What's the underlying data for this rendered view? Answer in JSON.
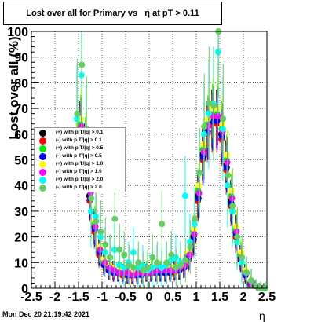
{
  "title": "Lost over all for Primary vs   η at pT > 0.11",
  "footer": "Mon Dec 20 21:19:42 2021",
  "chart_data": {
    "type": "scatter",
    "title": "Lost over all for Primary vs   η at pT > 0.11",
    "xlabel": "η",
    "ylabel": "Lost over all (%)",
    "xlim": [
      -2.5,
      2.5
    ],
    "ylim": [
      0,
      100
    ],
    "x_ticks": [
      "-2.5",
      "-2",
      "-1.5",
      "-1",
      "-0.5",
      "0",
      "0.5",
      "1",
      "1.5",
      "2",
      "2.5"
    ],
    "y_ticks": [
      "0",
      "10",
      "20",
      "30",
      "40",
      "50",
      "60",
      "70",
      "80",
      "90",
      "100"
    ],
    "grid": true,
    "legend_position": "left-middle",
    "x": [
      -1.55,
      -1.45,
      -1.35,
      -1.25,
      -1.15,
      -1.05,
      -0.95,
      -0.85,
      -0.75,
      -0.65,
      -0.55,
      -0.45,
      -0.35,
      -0.25,
      -0.15,
      -0.05,
      0.05,
      0.15,
      0.25,
      0.35,
      0.45,
      0.55,
      0.65,
      0.75,
      0.85,
      0.95,
      1.05,
      1.15,
      1.25,
      1.35,
      1.45,
      1.55,
      1.65,
      1.75,
      1.85,
      1.95,
      2.05,
      2.15,
      2.25,
      2.35,
      2.45
    ],
    "series": [
      {
        "name": "(+) with p T/|q| > 0.1",
        "color": "#000000",
        "values": [
          50,
          62,
          54,
          36,
          24,
          14,
          10,
          8,
          7,
          6,
          6,
          5,
          5,
          6,
          6,
          6,
          6,
          6,
          6,
          6,
          7,
          7,
          7,
          8,
          12,
          20,
          36,
          52,
          62,
          66,
          66,
          60,
          48,
          34,
          22,
          12,
          6,
          2,
          1,
          0,
          0
        ]
      },
      {
        "name": "(-) with p T/|q| > 0.1",
        "color": "#ff0000",
        "values": [
          48,
          60,
          52,
          34,
          22,
          13,
          9,
          7,
          6,
          6,
          5,
          5,
          5,
          5,
          6,
          6,
          6,
          6,
          6,
          6,
          6,
          6,
          7,
          8,
          11,
          18,
          34,
          50,
          60,
          64,
          64,
          58,
          46,
          32,
          20,
          11,
          5,
          2,
          1,
          0,
          0
        ]
      },
      {
        "name": "(+) with p T/|q| > 0.5",
        "color": "#00ee00",
        "values": [
          52,
          64,
          56,
          38,
          25,
          15,
          10,
          8,
          7,
          7,
          6,
          6,
          6,
          6,
          6,
          7,
          7,
          7,
          7,
          7,
          7,
          8,
          8,
          9,
          13,
          22,
          38,
          54,
          64,
          68,
          68,
          62,
          50,
          36,
          23,
          13,
          6,
          2,
          1,
          0,
          0
        ]
      },
      {
        "name": "(-) with p T/|q| > 0.5",
        "color": "#0000ff",
        "values": [
          49,
          61,
          53,
          35,
          23,
          14,
          9,
          7,
          6,
          6,
          6,
          5,
          5,
          5,
          5,
          6,
          6,
          6,
          6,
          6,
          6,
          7,
          7,
          8,
          12,
          19,
          35,
          51,
          61,
          65,
          65,
          59,
          47,
          33,
          21,
          11,
          5,
          2,
          1,
          0,
          0
        ]
      },
      {
        "name": "(+) with p T/|q| > 1.0",
        "color": "#ffff00",
        "values": [
          54,
          66,
          58,
          40,
          26,
          16,
          11,
          9,
          8,
          7,
          7,
          6,
          6,
          7,
          7,
          7,
          8,
          8,
          8,
          8,
          8,
          8,
          9,
          10,
          14,
          23,
          40,
          56,
          66,
          70,
          70,
          64,
          52,
          38,
          24,
          14,
          7,
          3,
          1,
          0,
          0
        ]
      },
      {
        "name": "(-) with p T/|q| > 1.0",
        "color": "#ff00ff",
        "values": [
          51,
          63,
          55,
          37,
          24,
          15,
          10,
          8,
          7,
          6,
          6,
          6,
          5,
          6,
          6,
          6,
          6,
          7,
          7,
          7,
          7,
          7,
          8,
          9,
          13,
          21,
          37,
          53,
          63,
          67,
          67,
          61,
          49,
          35,
          22,
          12,
          6,
          2,
          1,
          0,
          0
        ]
      },
      {
        "name": "(+) with p T/|q| > 2.0",
        "color": "#00ffff",
        "values": [
          66,
          83,
          60,
          30,
          28,
          20,
          14,
          12,
          15,
          9,
          8,
          10,
          14,
          8,
          9,
          7,
          8,
          9,
          8,
          9,
          11,
          12,
          10,
          36,
          18,
          25,
          45,
          60,
          68,
          72,
          92,
          62,
          40,
          30,
          18,
          10,
          6,
          3,
          1,
          0,
          0
        ]
      },
      {
        "name": "(-) with p T/|q| > 2.0",
        "color": "#66cc66",
        "values": [
          68,
          87,
          62,
          35,
          26,
          22,
          17,
          12,
          27,
          15,
          13,
          9,
          8,
          10,
          7,
          8,
          12,
          10,
          25,
          10,
          13,
          8,
          9,
          11,
          16,
          27,
          45,
          63,
          72,
          71,
          100,
          66,
          44,
          32,
          20,
          12,
          6,
          3,
          1,
          0,
          0
        ]
      }
    ]
  }
}
